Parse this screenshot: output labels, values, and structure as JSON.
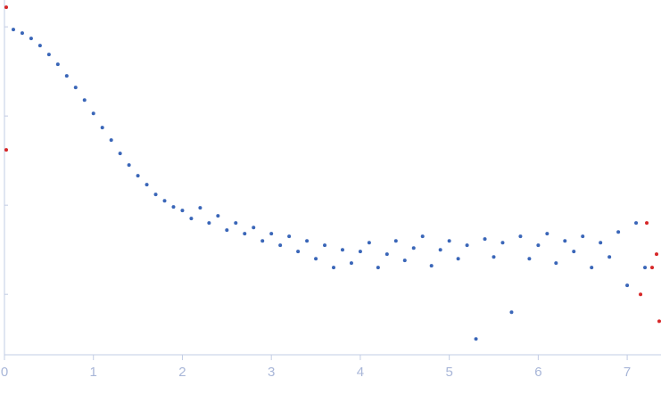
{
  "chart_data": {
    "type": "scatter",
    "log_y": true,
    "xlim": [
      0,
      7.38
    ],
    "xticks": [
      0,
      1,
      2,
      3,
      4,
      5,
      6,
      7
    ],
    "ylim": [
      0.00021,
      2
    ],
    "yticks": [
      0.001,
      0.01,
      0.1,
      1
    ],
    "series": [
      {
        "color": "#3a66b8",
        "x": [
          0.1,
          0.2,
          0.3,
          0.4,
          0.5,
          0.6,
          0.7,
          0.8,
          0.9,
          1.0,
          1.1,
          1.2,
          1.3,
          1.4,
          1.5,
          1.6,
          1.7,
          1.8,
          1.9,
          2.0,
          2.1,
          2.2,
          2.3,
          2.4,
          2.5,
          2.6,
          2.7,
          2.8,
          2.9,
          3.0,
          3.1,
          3.2,
          3.3,
          3.4,
          3.5,
          3.6,
          3.7,
          3.8,
          3.9,
          4.0,
          4.1,
          4.2,
          4.3,
          4.4,
          4.5,
          4.6,
          4.7,
          4.8,
          4.9,
          5.0,
          5.1,
          5.2,
          5.3,
          5.4,
          5.5,
          5.6,
          5.7,
          5.8,
          5.9,
          6.0,
          6.1,
          6.2,
          6.3,
          6.4,
          6.5,
          6.6,
          6.7,
          6.8,
          6.9,
          7.0,
          7.1,
          7.2
        ],
        "values": [
          0.933,
          0.851,
          0.741,
          0.617,
          0.49,
          0.38,
          0.282,
          0.209,
          0.151,
          0.107,
          0.0741,
          0.0537,
          0.038,
          0.0282,
          0.0214,
          0.017,
          0.0132,
          0.0112,
          0.00955,
          0.00871,
          0.00708,
          0.00933,
          0.00631,
          0.00759,
          0.00525,
          0.00631,
          0.00479,
          0.00562,
          0.00398,
          0.00479,
          0.00355,
          0.00447,
          0.00302,
          0.00398,
          0.00251,
          0.00355,
          0.002,
          0.00316,
          0.00224,
          0.00302,
          0.0038,
          0.002,
          0.00282,
          0.00398,
          0.0024,
          0.00331,
          0.00447,
          0.00209,
          0.00316,
          0.00398,
          0.00251,
          0.00355,
          0.000316,
          0.00417,
          0.00263,
          0.0038,
          0.000631,
          0.00447,
          0.00251,
          0.00355,
          0.00479,
          0.00224,
          0.00398,
          0.00302,
          0.00447,
          0.002,
          0.0038,
          0.00263,
          0.00501,
          0.00126,
          0.00631,
          0.002
        ]
      },
      {
        "color": "#d62728",
        "x": [
          0.02,
          0.02,
          7.15,
          7.22,
          7.28,
          7.33,
          7.36
        ],
        "values": [
          1.66,
          0.0417,
          0.001,
          0.00631,
          0.002,
          0.00282,
          0.0005
        ]
      }
    ]
  }
}
